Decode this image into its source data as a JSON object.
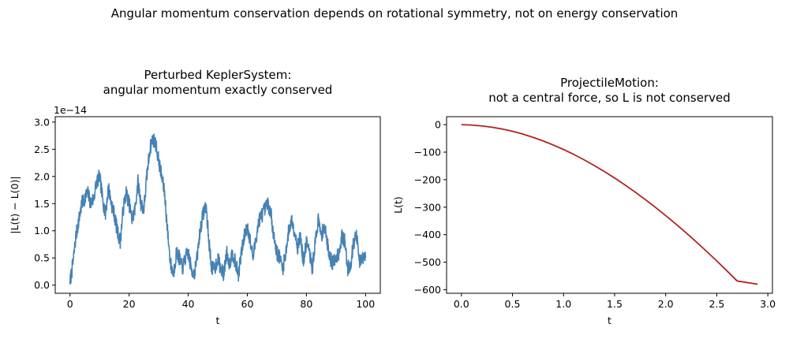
{
  "suptitle": "Angular momentum conservation depends on rotational symmetry, not on energy conservation",
  "chart_data": [
    {
      "type": "line",
      "title": [
        "Perturbed KeplerSystem:",
        "angular momentum exactly conserved"
      ],
      "xlabel": "t",
      "ylabel": "|L(t) − L(0)|",
      "offset_text": "1e−14",
      "xlim": [
        -5,
        105
      ],
      "ylim": [
        -0.15,
        3.1
      ],
      "xticks": [
        0,
        20,
        40,
        60,
        80,
        100
      ],
      "xtick_labels": [
        "0",
        "20",
        "40",
        "60",
        "80",
        "100"
      ],
      "yticks": [
        0.0,
        0.5,
        1.0,
        1.5,
        2.0,
        2.5,
        3.0
      ],
      "ytick_labels": [
        "0.0",
        "0.5",
        "1.0",
        "1.5",
        "2.0",
        "2.5",
        "3.0"
      ],
      "color": "#4682b4",
      "series": [
        {
          "x": [
            0,
            1,
            2,
            3,
            4,
            5,
            6,
            7,
            8,
            9,
            10,
            11,
            12,
            13,
            14,
            15,
            16,
            17,
            18,
            19,
            20,
            21,
            22,
            23,
            24,
            25,
            26,
            27,
            28,
            29,
            30,
            31,
            32,
            33,
            34,
            35,
            36,
            37,
            38,
            39,
            40,
            41,
            42,
            43,
            44,
            45,
            46,
            47,
            48,
            49,
            50,
            51,
            52,
            53,
            54,
            55,
            56,
            57,
            58,
            59,
            60,
            61,
            62,
            63,
            64,
            65,
            66,
            67,
            68,
            69,
            70,
            71,
            72,
            73,
            74,
            75,
            76,
            77,
            78,
            79,
            80,
            81,
            82,
            83,
            84,
            85,
            86,
            87,
            88,
            89,
            90,
            91,
            92,
            93,
            94,
            95,
            96,
            97,
            98,
            99,
            100
          ],
          "values": [
            0.05,
            0.4,
            0.9,
            1.2,
            1.5,
            1.6,
            1.7,
            1.5,
            1.6,
            1.9,
            2.0,
            1.6,
            1.3,
            1.8,
            1.5,
            1.3,
            1.0,
            0.8,
            1.4,
            1.7,
            1.5,
            1.2,
            1.4,
            1.9,
            1.5,
            1.4,
            2.0,
            2.5,
            2.7,
            2.6,
            2.3,
            2.0,
            1.7,
            1.0,
            0.4,
            0.2,
            0.6,
            0.5,
            0.3,
            0.5,
            0.6,
            0.3,
            0.2,
            0.5,
            1.0,
            1.3,
            1.5,
            0.8,
            0.3,
            0.3,
            0.5,
            0.3,
            0.2,
            0.6,
            0.4,
            0.6,
            0.4,
            0.2,
            0.6,
            0.9,
            1.1,
            0.8,
            0.5,
            0.9,
            1.2,
            1.3,
            1.4,
            1.5,
            1.3,
            0.9,
            0.6,
            0.5,
            0.3,
            0.6,
            1.0,
            1.2,
            1.0,
            0.7,
            0.9,
            0.4,
            0.8,
            0.6,
            0.3,
            0.8,
            1.2,
            0.9,
            1.1,
            0.8,
            0.5,
            0.4,
            0.5,
            0.6,
            0.9,
            0.8,
            0.3,
            0.4,
            0.8,
            0.9,
            0.4,
            0.5,
            0.5
          ]
        }
      ]
    },
    {
      "type": "line",
      "title": [
        "ProjectileMotion:",
        "not a central force, so L is not conserved"
      ],
      "xlabel": "t",
      "ylabel": "L(t)",
      "xlim": [
        -0.145,
        3.045
      ],
      "ylim": [
        -613,
        29
      ],
      "xticks": [
        0.0,
        0.5,
        1.0,
        1.5,
        2.0,
        2.5,
        3.0
      ],
      "xtick_labels": [
        "0.0",
        "0.5",
        "1.0",
        "1.5",
        "2.0",
        "2.5",
        "3.0"
      ],
      "yticks": [
        0,
        -100,
        -200,
        -300,
        -400,
        -500,
        -600
      ],
      "ytick_labels": [
        "0",
        "−100",
        "−200",
        "−300",
        "−400",
        "−500",
        "−600"
      ],
      "color": "#b22222",
      "series": [
        {
          "x": [
            0.0,
            0.1,
            0.2,
            0.3,
            0.4,
            0.5,
            0.6,
            0.7,
            0.8,
            0.9,
            1.0,
            1.1,
            1.2,
            1.3,
            1.4,
            1.5,
            1.6,
            1.7,
            1.8,
            1.9,
            2.0,
            2.1,
            2.2,
            2.3,
            2.4,
            2.5,
            2.6,
            2.7,
            2.8,
            2.9
          ],
          "values": [
            0.0,
            -1.4,
            -4.6,
            -9.4,
            -15.9,
            -24.1,
            -34.1,
            -45.8,
            -59.1,
            -73.9,
            -90.3,
            -108.2,
            -127.6,
            -148.3,
            -170.5,
            -194.0,
            -218.8,
            -244.9,
            -272.2,
            -300.8,
            -330.5,
            -361.4,
            -393.3,
            -426.3,
            -460.4,
            -495.4,
            -531.5,
            -568.4,
            -606.2,
            -580.0
          ]
        }
      ]
    }
  ]
}
